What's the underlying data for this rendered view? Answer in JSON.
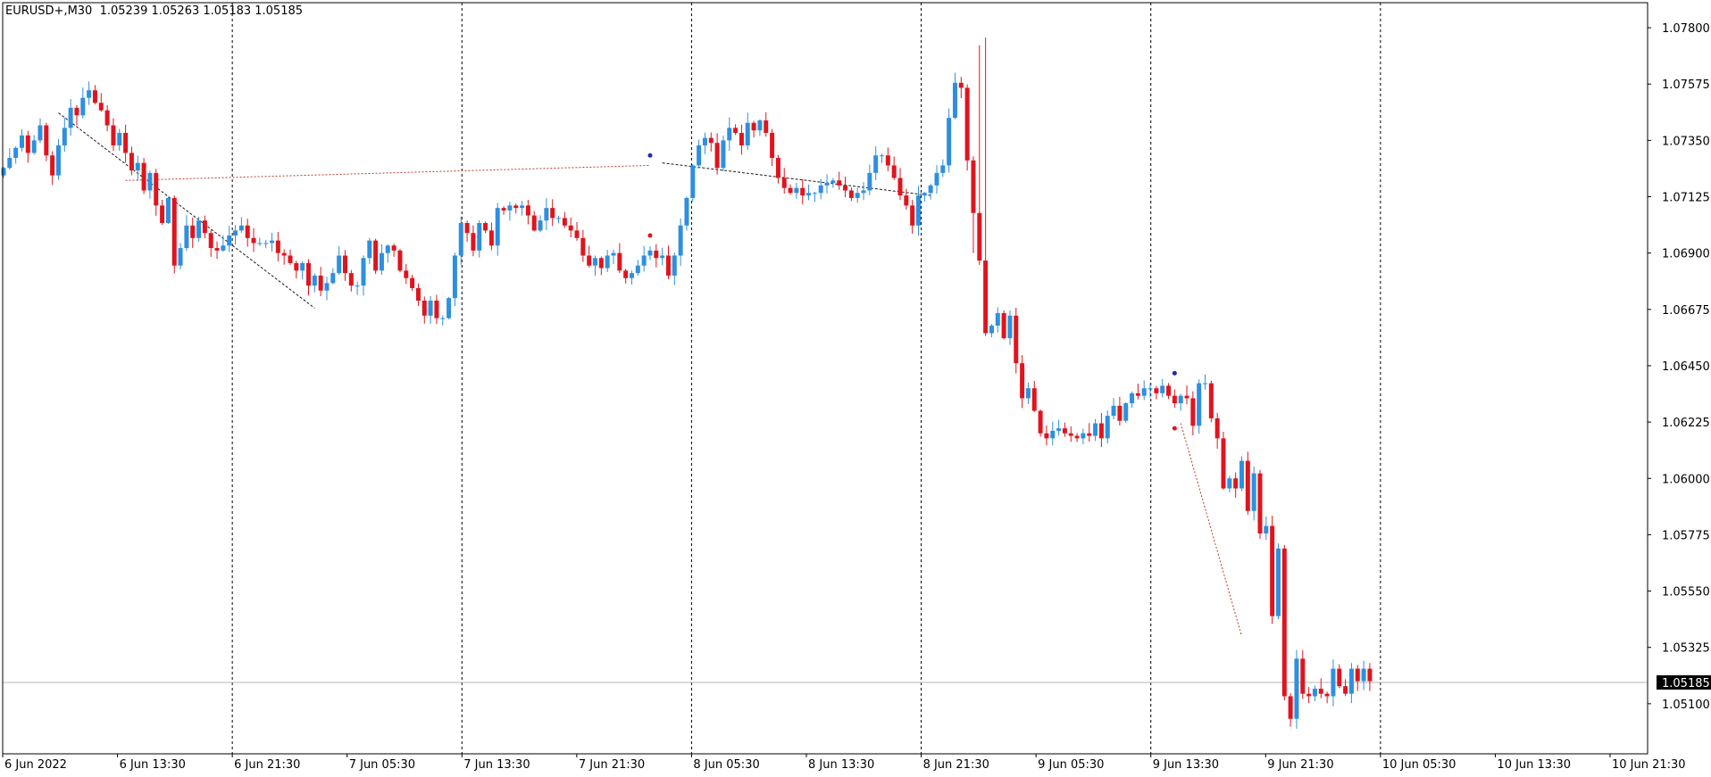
{
  "chart_data": {
    "type": "candlestick",
    "title": "EURUSD+,M30  1.05239 1.05263 1.05183 1.05185",
    "symbol": "EURUSD+",
    "timeframe": "M30",
    "ohlc_header": [
      "1.05239",
      "1.05263",
      "1.05183",
      "1.05185"
    ],
    "ylim": [
      1.049,
      1.079
    ],
    "y_ticks": [
      "1.07800",
      "1.07575",
      "1.07350",
      "1.07125",
      "1.06900",
      "1.06675",
      "1.06450",
      "1.06225",
      "1.06000",
      "1.05775",
      "1.05550",
      "1.05325",
      "1.05100"
    ],
    "x_ticks": [
      "6 Jun 2022",
      "6 Jun 13:30",
      "6 Jun 21:30",
      "7 Jun 05:30",
      "7 Jun 13:30",
      "7 Jun 21:30",
      "8 Jun 05:30",
      "8 Jun 13:30",
      "8 Jun 21:30",
      "9 Jun 05:30",
      "9 Jun 13:30",
      "9 Jun 21:30",
      "10 Jun 05:30",
      "10 Jun 13:30",
      "10 Jun 21:30"
    ],
    "current_price": "1.05185",
    "colors": {
      "up": "#2e8fe0",
      "down": "#e0141e",
      "grid": "#000000",
      "price_line": "#b4b4b4",
      "zigzag": "#1a1a1a",
      "trend": "#c0392b"
    },
    "closes": [
      1.0724,
      1.0728,
      1.0732,
      1.0737,
      1.073,
      1.0735,
      1.0741,
      1.0729,
      1.0721,
      1.0733,
      1.074,
      1.0748,
      1.0745,
      1.0752,
      1.0755,
      1.075,
      1.0747,
      1.0741,
      1.0733,
      1.0738,
      1.073,
      1.0723,
      1.0726,
      1.0715,
      1.0722,
      1.0709,
      1.0702,
      1.0712,
      1.0685,
      1.0692,
      1.0701,
      1.0696,
      1.0703,
      1.0698,
      1.0692,
      1.0691,
      1.0693,
      1.0697,
      1.0699,
      1.0701,
      1.0696,
      1.0694,
      1.0694,
      1.0694,
      1.0695,
      1.069,
      1.0689,
      1.0686,
      1.0683,
      1.0686,
      1.0677,
      1.0681,
      1.0675,
      1.0678,
      1.0682,
      1.0689,
      1.0682,
      1.0677,
      1.0677,
      1.0688,
      1.0695,
      1.0683,
      1.069,
      1.0693,
      1.0691,
      1.0683,
      1.068,
      1.0676,
      1.0671,
      1.0665,
      1.0671,
      1.0664,
      1.0664,
      1.0672,
      1.0689,
      1.0702,
      1.0698,
      1.0691,
      1.0702,
      1.0699,
      1.0693,
      1.0708,
      1.0707,
      1.0709,
      1.0708,
      1.0709,
      1.0705,
      1.0699,
      1.0703,
      1.0708,
      1.0704,
      1.0704,
      1.0701,
      1.0699,
      1.0696,
      1.0689,
      1.0685,
      1.0688,
      1.0684,
      1.0689,
      1.069,
      1.0683,
      1.068,
      1.0682,
      1.0685,
      1.0689,
      1.0691,
      1.0688,
      1.0689,
      1.0681,
      1.0689,
      1.0701,
      1.0712,
      1.0725,
      1.0733,
      1.0736,
      1.0734,
      1.0724,
      1.0735,
      1.074,
      1.0738,
      1.0733,
      1.0742,
      1.0739,
      1.0743,
      1.0738,
      1.0728,
      1.072,
      1.0716,
      1.0714,
      1.0716,
      1.0713,
      1.0714,
      1.0714,
      1.0717,
      1.0718,
      1.0719,
      1.0717,
      1.0715,
      1.0712,
      1.0714,
      1.0715,
      1.0722,
      1.0729,
      1.0729,
      1.0725,
      1.072,
      1.0713,
      1.0709,
      1.0701,
      1.0713,
      1.0714,
      1.0717,
      1.0722,
      1.0725,
      1.0744,
      1.0758,
      1.0756,
      1.0727,
      1.0706,
      1.0687,
      1.0658,
      1.0661,
      1.0666,
      1.0656,
      1.0665,
      1.0646,
      1.0632,
      1.0636,
      1.0627,
      1.0618,
      1.0616,
      1.0619,
      1.062,
      1.0618,
      1.0617,
      1.0616,
      1.0618,
      1.0617,
      1.0622,
      1.0616,
      1.0625,
      1.0629,
      1.0623,
      1.063,
      1.0634,
      1.0633,
      1.0636,
      1.0636,
      1.0634,
      1.0637,
      1.0633,
      1.063,
      1.0633,
      1.0632,
      1.0621,
      1.0638,
      1.0638,
      1.0624,
      1.0616,
      1.0596,
      1.06,
      1.0596,
      1.0607,
      1.0587,
      1.0602,
      1.0578,
      1.0581,
      1.0545,
      1.0572,
      1.0513,
      1.0504,
      1.0528,
      1.0514,
      1.0513,
      1.0516,
      1.0514,
      1.0513,
      1.0524,
      1.0517,
      1.0514,
      1.0524,
      1.0519,
      1.0524,
      1.0519
    ]
  }
}
